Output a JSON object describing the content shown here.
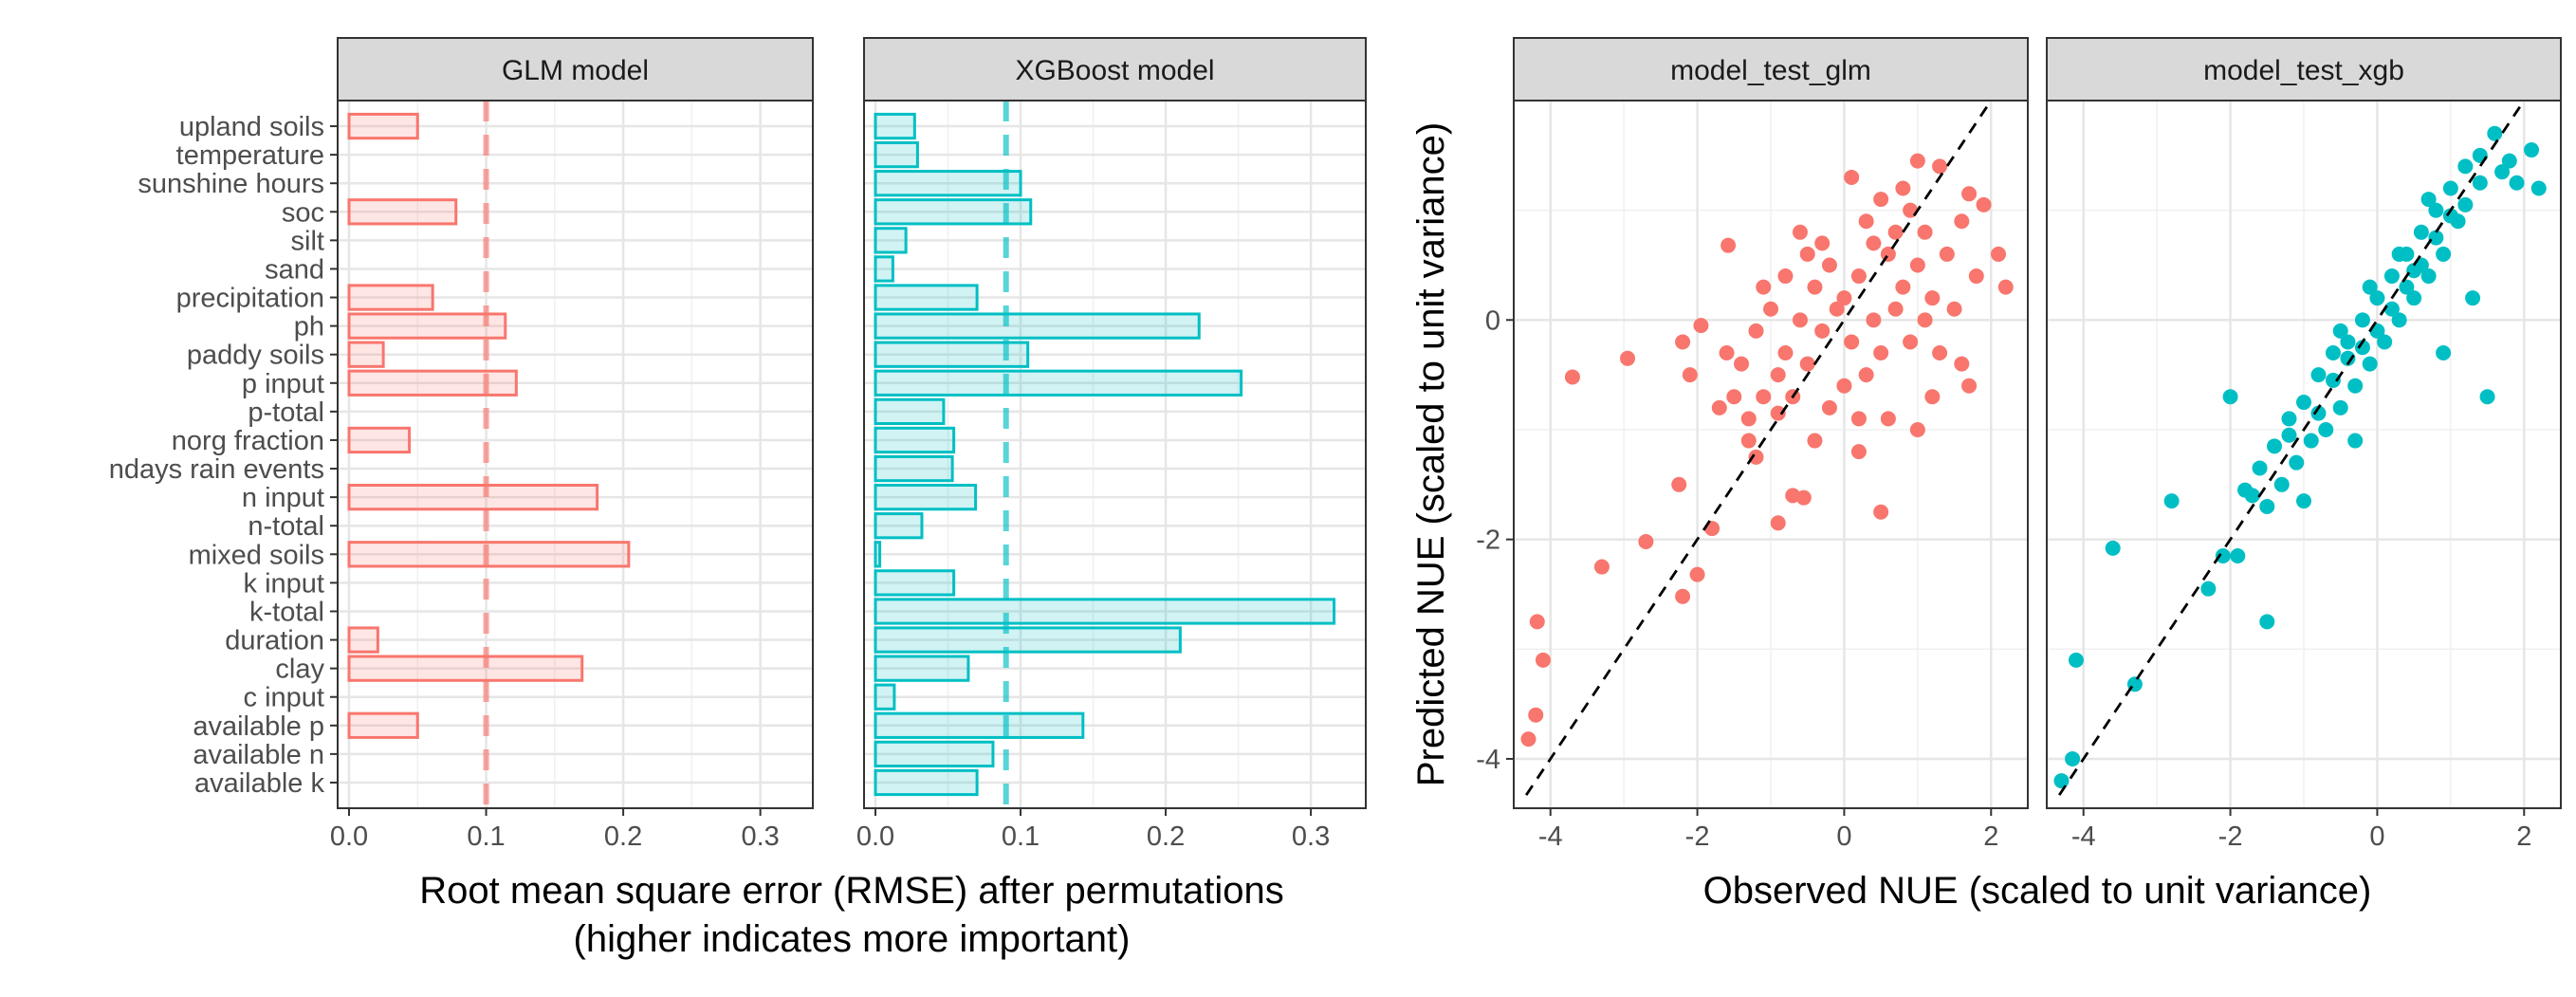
{
  "chart_data": [
    {
      "type": "bar",
      "orientation": "horizontal",
      "panels": [
        "GLM model",
        "XGBoost model"
      ],
      "categories": [
        "upland soils",
        "temperature",
        "sunshine hours",
        "soc",
        "silt",
        "sand",
        "precipitation",
        "ph",
        "paddy soils",
        "p input",
        "p-total",
        "norg fraction",
        "ndays rain events",
        "n input",
        "n-total",
        "mixed soils",
        "k input",
        "k-total",
        "duration",
        "clay",
        "c input",
        "available p",
        "available n",
        "available k"
      ],
      "series": [
        {
          "values": [
            0.05,
            0,
            0,
            0.078,
            0,
            0,
            0.061,
            0.114,
            0.025,
            0.122,
            0,
            0.044,
            0,
            0.181,
            0,
            0.204,
            0,
            0,
            0.021,
            0.17,
            0,
            0.05,
            0,
            0
          ],
          "color": "#F8766D",
          "reference_line": 0.1
        },
        {
          "values": [
            0.027,
            0.029,
            0.1,
            0.107,
            0.021,
            0.012,
            0.07,
            0.223,
            0.105,
            0.252,
            0.047,
            0.054,
            0.053,
            0.069,
            0.032,
            0.003,
            0.054,
            0.316,
            0.21,
            0.064,
            0.013,
            0.143,
            0.081,
            0.07
          ],
          "color": "#00BFC4",
          "reference_line": 0.09
        }
      ],
      "xlim": [
        0,
        0.33
      ],
      "xticks": [
        0.0,
        0.1,
        0.2,
        0.3
      ],
      "xtick_labels": [
        "0.0",
        "0.1",
        "0.2",
        "0.3"
      ],
      "xlabel": "Root mean square error (RMSE) after permutations",
      "xlabel2": "(higher indicates more important)",
      "grid": true
    },
    {
      "type": "scatter",
      "panels": [
        "model_test_glm",
        "model_test_xgb"
      ],
      "xlim": [
        -4.5,
        2.5
      ],
      "ylim": [
        -4.45,
        2.0
      ],
      "xticks": [
        -4,
        -2,
        0,
        2
      ],
      "yticks": [
        -4,
        -2,
        0
      ],
      "xtick_labels": [
        "-4",
        "-2",
        "0",
        "2"
      ],
      "ytick_labels": [
        "-4",
        "-2",
        "0"
      ],
      "xlabel": "Observed NUE (scaled to unit variance)",
      "ylabel": "Predicted NUE (scaled to unit variance)",
      "reference_line": "y = x",
      "grid": true,
      "series": [
        {
          "color": "#F8766D",
          "points": [
            [
              -4.3,
              -3.82
            ],
            [
              -4.2,
              -3.6
            ],
            [
              -4.18,
              -2.75
            ],
            [
              -4.1,
              -3.1
            ],
            [
              -3.7,
              -0.52
            ],
            [
              -3.3,
              -2.25
            ],
            [
              -2.95,
              -0.35
            ],
            [
              -2.7,
              -2.02
            ],
            [
              -2.25,
              -1.5
            ],
            [
              -2.2,
              -2.52
            ],
            [
              -2.0,
              -2.32
            ],
            [
              -1.8,
              -1.9
            ],
            [
              -1.58,
              0.68
            ],
            [
              -2.2,
              -0.2
            ],
            [
              -2.1,
              -0.5
            ],
            [
              -1.95,
              -0.05
            ],
            [
              -1.5,
              -0.7
            ],
            [
              -0.9,
              -1.85
            ],
            [
              -0.55,
              -1.62
            ],
            [
              0.5,
              -1.75
            ],
            [
              -0.7,
              -1.6
            ],
            [
              -1.2,
              -1.25
            ],
            [
              0.8,
              1.2
            ],
            [
              1.3,
              1.4
            ],
            [
              1.0,
              1.45
            ],
            [
              0.5,
              1.1
            ],
            [
              1.7,
              1.15
            ],
            [
              1.9,
              1.05
            ],
            [
              2.2,
              0.3
            ],
            [
              2.1,
              0.6
            ],
            [
              1.7,
              -0.6
            ],
            [
              1.6,
              -0.4
            ],
            [
              1.0,
              -1.0
            ],
            [
              0.2,
              -0.9
            ],
            [
              -0.9,
              -0.85
            ],
            [
              -1.3,
              -0.9
            ],
            [
              -1.1,
              0.3
            ],
            [
              -0.6,
              0.8
            ],
            [
              -0.3,
              0.7
            ],
            [
              0.1,
              1.3
            ],
            [
              -1.4,
              -0.4
            ],
            [
              -1.2,
              -0.1
            ],
            [
              -1.0,
              0.1
            ],
            [
              -0.8,
              -0.3
            ],
            [
              -0.6,
              0.0
            ],
            [
              -0.4,
              0.3
            ],
            [
              -0.2,
              0.5
            ],
            [
              0.0,
              0.2
            ],
            [
              0.2,
              0.4
            ],
            [
              0.4,
              0.0
            ],
            [
              0.6,
              0.6
            ],
            [
              0.8,
              0.3
            ],
            [
              1.0,
              0.5
            ],
            [
              1.2,
              0.2
            ],
            [
              1.4,
              0.6
            ],
            [
              1.6,
              0.9
            ],
            [
              -0.9,
              -0.5
            ],
            [
              -0.7,
              -0.7
            ],
            [
              -0.5,
              -0.4
            ],
            [
              -0.3,
              -0.1
            ],
            [
              -0.1,
              0.1
            ],
            [
              0.1,
              -0.2
            ],
            [
              0.3,
              -0.5
            ],
            [
              0.5,
              -0.3
            ],
            [
              0.7,
              0.1
            ],
            [
              0.9,
              -0.2
            ],
            [
              1.1,
              0.0
            ],
            [
              1.3,
              -0.3
            ],
            [
              1.5,
              0.1
            ],
            [
              -1.1,
              -0.7
            ],
            [
              -0.2,
              -0.8
            ],
            [
              0.3,
              0.9
            ],
            [
              0.7,
              0.8
            ],
            [
              1.1,
              0.8
            ],
            [
              -0.5,
              0.6
            ],
            [
              -1.6,
              -0.3
            ],
            [
              0.0,
              -0.6
            ],
            [
              0.6,
              -0.9
            ],
            [
              -0.8,
              0.4
            ],
            [
              0.4,
              0.7
            ],
            [
              1.2,
              -0.7
            ],
            [
              1.8,
              0.4
            ],
            [
              -1.7,
              -0.8
            ],
            [
              -1.3,
              -1.1
            ],
            [
              0.9,
              1.0
            ],
            [
              -0.4,
              -1.1
            ],
            [
              0.2,
              -1.2
            ]
          ]
        },
        {
          "color": "#00BFC4",
          "points": [
            [
              -4.3,
              -4.2
            ],
            [
              -4.15,
              -4.0
            ],
            [
              -4.1,
              -3.1
            ],
            [
              -3.3,
              -3.32
            ],
            [
              -3.6,
              -2.08
            ],
            [
              -2.8,
              -1.65
            ],
            [
              -2.3,
              -2.45
            ],
            [
              -2.1,
              -2.15
            ],
            [
              -1.9,
              -2.15
            ],
            [
              -1.5,
              -2.75
            ],
            [
              -2.0,
              -0.7
            ],
            [
              -1.8,
              -1.55
            ],
            [
              -1.6,
              -1.35
            ],
            [
              -1.4,
              -1.15
            ],
            [
              -1.2,
              -0.9
            ],
            [
              -1.0,
              -0.75
            ],
            [
              -0.8,
              -0.5
            ],
            [
              -0.6,
              -0.3
            ],
            [
              -0.4,
              -0.2
            ],
            [
              -0.2,
              0.0
            ],
            [
              0.0,
              0.2
            ],
            [
              0.2,
              0.4
            ],
            [
              0.4,
              0.6
            ],
            [
              0.6,
              0.8
            ],
            [
              0.8,
              1.0
            ],
            [
              1.0,
              1.2
            ],
            [
              1.2,
              1.4
            ],
            [
              1.4,
              1.5
            ],
            [
              1.6,
              1.7
            ],
            [
              1.8,
              1.45
            ],
            [
              2.2,
              1.2
            ],
            [
              2.1,
              1.55
            ],
            [
              1.1,
              0.9
            ],
            [
              0.9,
              0.6
            ],
            [
              0.7,
              0.4
            ],
            [
              0.5,
              0.2
            ],
            [
              0.3,
              0.0
            ],
            [
              0.1,
              -0.2
            ],
            [
              -0.1,
              -0.4
            ],
            [
              -0.3,
              -0.6
            ],
            [
              -0.5,
              -0.8
            ],
            [
              -0.7,
              -1.0
            ],
            [
              -0.9,
              -1.1
            ],
            [
              -1.1,
              -1.3
            ],
            [
              -1.3,
              -1.5
            ],
            [
              -1.5,
              -1.7
            ],
            [
              -1.7,
              -1.6
            ],
            [
              -0.5,
              -0.1
            ],
            [
              -0.1,
              0.3
            ],
            [
              0.3,
              0.6
            ],
            [
              0.7,
              1.1
            ],
            [
              1.5,
              -0.7
            ],
            [
              1.3,
              0.2
            ],
            [
              0.9,
              -0.3
            ],
            [
              -0.3,
              -1.1
            ],
            [
              -1.0,
              -1.65
            ],
            [
              -0.2,
              -0.25
            ],
            [
              0.4,
              0.3
            ],
            [
              0.0,
              -0.1
            ],
            [
              0.6,
              0.5
            ],
            [
              1.2,
              1.05
            ],
            [
              -0.6,
              -0.55
            ],
            [
              -0.8,
              -0.85
            ],
            [
              0.2,
              0.1
            ],
            [
              0.8,
              0.75
            ],
            [
              1.0,
              0.95
            ],
            [
              1.4,
              1.25
            ],
            [
              -1.2,
              -1.05
            ],
            [
              -0.4,
              -0.35
            ],
            [
              0.5,
              0.45
            ],
            [
              1.7,
              1.35
            ],
            [
              1.9,
              1.25
            ]
          ]
        }
      ]
    }
  ]
}
